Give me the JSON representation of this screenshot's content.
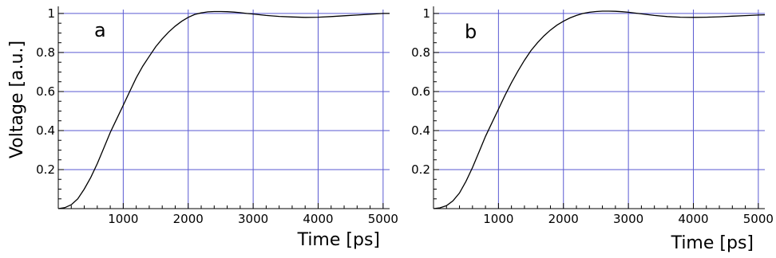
{
  "chart_data": [
    {
      "type": "line",
      "panel_label": "a",
      "xlabel": "Time [ps]",
      "ylabel": "Voltage [a.u.]",
      "xlim": [
        0,
        5100
      ],
      "ylim": [
        0,
        1.02
      ],
      "x_ticks": [
        1000,
        2000,
        3000,
        4000,
        5000
      ],
      "x_tick_labels": [
        "1000",
        "2000",
        "3000",
        "4000",
        "5000"
      ],
      "y_ticks": [
        0.2,
        0.4,
        0.6,
        0.8,
        1
      ],
      "y_tick_labels": [
        "0.2",
        "0.4",
        "0.6",
        "0.8",
        "1"
      ],
      "grid": true,
      "grid_color": "#5a5ad2",
      "line_color": "#000000",
      "series": [
        {
          "x": [
            0,
            100,
            200,
            300,
            400,
            500,
            600,
            700,
            800,
            900,
            1000,
            1100,
            1200,
            1300,
            1400,
            1500,
            1600,
            1700,
            1800,
            1900,
            2000,
            2100,
            2200,
            2300,
            2400,
            2500,
            2600,
            2700,
            2800,
            2900,
            3000,
            3200,
            3400,
            3600,
            3800,
            4000,
            4200,
            4400,
            4600,
            4800,
            5000,
            5100
          ],
          "y": [
            0,
            0.005,
            0.02,
            0.05,
            0.1,
            0.16,
            0.23,
            0.31,
            0.39,
            0.46,
            0.53,
            0.6,
            0.67,
            0.73,
            0.78,
            0.83,
            0.87,
            0.905,
            0.935,
            0.96,
            0.98,
            0.995,
            1.003,
            1.008,
            1.01,
            1.01,
            1.009,
            1.007,
            1.004,
            1.0,
            0.997,
            0.99,
            0.985,
            0.982,
            0.98,
            0.981,
            0.984,
            0.988,
            0.992,
            0.996,
            1.0,
            1.0
          ]
        }
      ]
    },
    {
      "type": "line",
      "panel_label": "b",
      "xlabel": "Time [ps]",
      "ylabel": "",
      "xlim": [
        0,
        5100
      ],
      "ylim": [
        0,
        1.02
      ],
      "x_ticks": [
        1000,
        2000,
        3000,
        4000,
        5000
      ],
      "x_tick_labels": [
        "1000",
        "2000",
        "3000",
        "4000",
        "5000"
      ],
      "y_ticks": [
        0.2,
        0.4,
        0.6,
        0.8,
        1
      ],
      "y_tick_labels": [
        "0.2",
        "0.4",
        "0.6",
        "0.8",
        "1"
      ],
      "grid": true,
      "grid_color": "#5a5ad2",
      "line_color": "#000000",
      "series": [
        {
          "x": [
            0,
            100,
            200,
            300,
            400,
            500,
            600,
            700,
            800,
            900,
            1000,
            1100,
            1200,
            1300,
            1400,
            1500,
            1600,
            1700,
            1800,
            1900,
            2000,
            2100,
            2200,
            2300,
            2400,
            2500,
            2600,
            2700,
            2800,
            2900,
            3000,
            3200,
            3400,
            3600,
            3800,
            4000,
            4200,
            4400,
            4600,
            4800,
            5000,
            5100
          ],
          "y": [
            0,
            0.004,
            0.015,
            0.04,
            0.08,
            0.14,
            0.21,
            0.29,
            0.37,
            0.44,
            0.51,
            0.58,
            0.645,
            0.705,
            0.76,
            0.81,
            0.85,
            0.885,
            0.915,
            0.94,
            0.96,
            0.977,
            0.99,
            1.0,
            1.006,
            1.01,
            1.012,
            1.012,
            1.011,
            1.009,
            1.006,
            0.998,
            0.99,
            0.984,
            0.981,
            0.98,
            0.981,
            0.983,
            0.986,
            0.989,
            0.992,
            0.993
          ]
        }
      ]
    }
  ]
}
